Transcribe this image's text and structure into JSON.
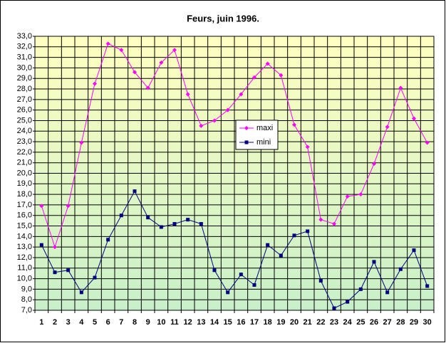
{
  "chart_data": {
    "type": "line",
    "title": "Feurs, juin 1996.",
    "categories": [
      1,
      2,
      3,
      4,
      5,
      6,
      7,
      8,
      9,
      10,
      11,
      12,
      13,
      14,
      15,
      16,
      17,
      18,
      19,
      20,
      21,
      22,
      23,
      24,
      25,
      26,
      27,
      28,
      29,
      30
    ],
    "series": [
      {
        "name": "maxi",
        "color": "#ff00ff",
        "marker": "diamond",
        "values": [
          16.9,
          13.0,
          16.9,
          22.9,
          28.5,
          32.3,
          31.7,
          29.6,
          28.1,
          30.5,
          31.7,
          27.5,
          24.5,
          25.0,
          26.0,
          27.5,
          29.1,
          30.4,
          29.3,
          24.6,
          22.5,
          15.6,
          15.2,
          17.8,
          18.0,
          20.9,
          24.4,
          28.1,
          25.2,
          22.9
        ]
      },
      {
        "name": "mini",
        "color": "#000080",
        "marker": "square",
        "values": [
          13.2,
          10.6,
          10.8,
          8.7,
          10.1,
          13.7,
          16.0,
          18.3,
          15.8,
          14.9,
          15.2,
          15.6,
          15.2,
          10.8,
          8.7,
          10.4,
          9.4,
          13.2,
          12.2,
          14.1,
          14.5,
          9.8,
          7.2,
          7.8,
          9.0,
          11.6,
          8.7,
          10.9,
          12.7,
          9.3
        ]
      }
    ],
    "ylim": [
      7,
      33
    ],
    "yticks": [
      {
        "value": 7,
        "label": "7,0"
      },
      {
        "value": 8,
        "label": "8,0"
      },
      {
        "value": 9,
        "label": "9,0"
      },
      {
        "value": 10,
        "label": "10,0"
      },
      {
        "value": 11,
        "label": "11,0"
      },
      {
        "value": 12,
        "label": "12,0"
      },
      {
        "value": 13,
        "label": "13,0"
      },
      {
        "value": 14,
        "label": "14,0"
      },
      {
        "value": 15,
        "label": "15,0"
      },
      {
        "value": 16,
        "label": "16,0"
      },
      {
        "value": 17,
        "label": "17,0"
      },
      {
        "value": 18,
        "label": "18,0"
      },
      {
        "value": 19,
        "label": "19,0"
      },
      {
        "value": 20,
        "label": "20,0"
      },
      {
        "value": 21,
        "label": "21,0"
      },
      {
        "value": 22,
        "label": "22,0"
      },
      {
        "value": 23,
        "label": "23,0"
      },
      {
        "value": 24,
        "label": "24,0"
      },
      {
        "value": 25,
        "label": "25,0"
      },
      {
        "value": 26,
        "label": "26,0"
      },
      {
        "value": 27,
        "label": "27,0"
      },
      {
        "value": 28,
        "label": "28,0"
      },
      {
        "value": 29,
        "label": "29,0"
      },
      {
        "value": 30,
        "label": "30,0"
      },
      {
        "value": 31,
        "label": "31,0"
      },
      {
        "value": 32,
        "label": "32,0"
      },
      {
        "value": 33,
        "label": "33,0"
      }
    ],
    "grid": true,
    "legend": "center"
  }
}
